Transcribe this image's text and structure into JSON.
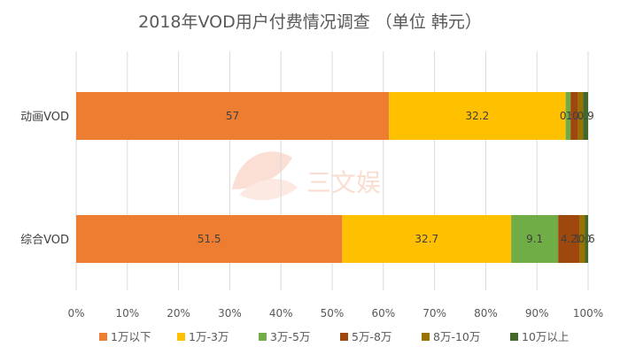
{
  "chart_data": {
    "type": "bar",
    "orientation": "horizontal",
    "stacking": "percent",
    "title": "2018年VOD用户付费情况调查 （单位 韩元）",
    "categories": [
      "动画VOD",
      "综合VOD"
    ],
    "x_ticks": [
      "0%",
      "10%",
      "20%",
      "30%",
      "40%",
      "50%",
      "60%",
      "70%",
      "80%",
      "90%",
      "100%"
    ],
    "xlim": [
      0,
      100
    ],
    "grid": true,
    "legend_position": "bottom",
    "series": [
      {
        "name": "1万以下",
        "color": "#ED7D31",
        "values": [
          57,
          51.5
        ],
        "labels": [
          "57",
          "51.5"
        ]
      },
      {
        "name": "1万-3万",
        "color": "#FFC000",
        "values": [
          32.2,
          32.7
        ],
        "labels": [
          "32.2",
          "32.7"
        ]
      },
      {
        "name": "3万-5万",
        "color": "#70AD47",
        "values": [
          0.9,
          9.1
        ],
        "labels": [
          "0.9",
          "9.1"
        ]
      },
      {
        "name": "5万-8万",
        "color": "#9E480E",
        "values": [
          1.4,
          4.2
        ],
        "labels": [
          "1.4",
          "4.2"
        ]
      },
      {
        "name": "8万-10万",
        "color": "#997300",
        "values": [
          0.9,
          1.0
        ],
        "labels": [
          "0.9",
          "1.0"
        ]
      },
      {
        "name": "10万以上",
        "color": "#43682B",
        "values": [
          0.9,
          0.6
        ],
        "labels": [
          "0.9",
          "0.6"
        ]
      }
    ]
  },
  "watermark": {
    "text": "三文娱"
  }
}
